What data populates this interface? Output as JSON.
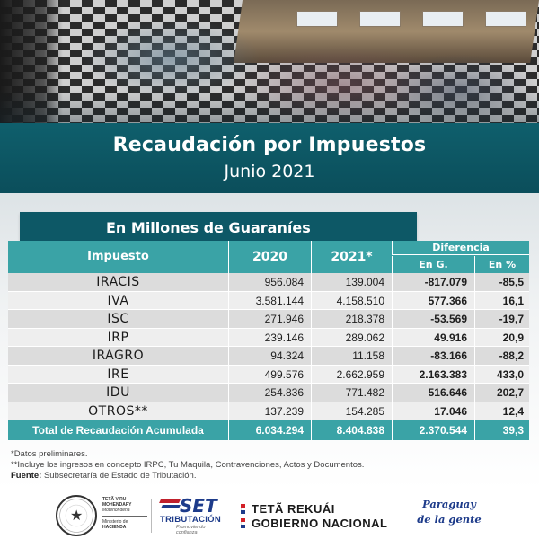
{
  "header": {
    "title": "Recaudación por Impuestos",
    "subtitle": "Junio 2021",
    "units": "En Millones de Guaraníes"
  },
  "table": {
    "columns": {
      "impuesto": "Impuesto",
      "y2020": "2020",
      "y2021": "2021*",
      "diferencia": "Diferencia",
      "en_g": "En G.",
      "en_pct": "En %"
    },
    "rows": [
      {
        "name": "IRACIS",
        "y2020": "956.084",
        "y2021": "139.004",
        "dif_g": "-817.079",
        "dif_pct": "-85,5"
      },
      {
        "name": "IVA",
        "y2020": "3.581.144",
        "y2021": "4.158.510",
        "dif_g": "577.366",
        "dif_pct": "16,1"
      },
      {
        "name": "ISC",
        "y2020": "271.946",
        "y2021": "218.378",
        "dif_g": "-53.569",
        "dif_pct": "-19,7"
      },
      {
        "name": "IRP",
        "y2020": "239.146",
        "y2021": "289.062",
        "dif_g": "49.916",
        "dif_pct": "20,9"
      },
      {
        "name": "IRAGRO",
        "y2020": "94.324",
        "y2021": "11.158",
        "dif_g": "-83.166",
        "dif_pct": "-88,2"
      },
      {
        "name": "IRE",
        "y2020": "499.576",
        "y2021": "2.662.959",
        "dif_g": "2.163.383",
        "dif_pct": "433,0"
      },
      {
        "name": "IDU",
        "y2020": "254.836",
        "y2021": "771.482",
        "dif_g": "516.646",
        "dif_pct": "202,7"
      },
      {
        "name": "OTROS**",
        "y2020": "137.239",
        "y2021": "154.285",
        "dif_g": "17.046",
        "dif_pct": "12,4"
      }
    ],
    "total": {
      "name": "Total de Recaudación Acumulada",
      "y2020": "6.034.294",
      "y2021": "8.404.838",
      "dif_g": "2.370.544",
      "dif_pct": "39,3"
    }
  },
  "notes": {
    "line1": "*Datos preliminares.",
    "line2": "**Incluye los ingresos en concepto IRPC, Tu Maquila, Contravenciones, Actos y Documentos.",
    "fuente_label": "Fuente:",
    "fuente_text": " Subsecretaría de Estado de Tributación."
  },
  "footer": {
    "ministry": {
      "l1": "TETÃ VIRU",
      "l2": "MOHENDAPY",
      "l3": "Motenondeha",
      "l4": "Ministerio de",
      "l5": "HACIENDA"
    },
    "set": {
      "brand": "SET",
      "sub": "TRIBUTACIÓN",
      "tagline": "Promoviendo confianza"
    },
    "gobierno": {
      "l1": "TETÃ REKUÁI",
      "l2": "GOBIERNO NACIONAL"
    },
    "slogan": {
      "l1": "Paraguay",
      "l2": "de la gente"
    }
  },
  "colors": {
    "title_band": "#0f5f6c",
    "table_header": "#3aa3a6",
    "row_odd": "#dcdcdc",
    "row_even": "#eeeeee"
  }
}
